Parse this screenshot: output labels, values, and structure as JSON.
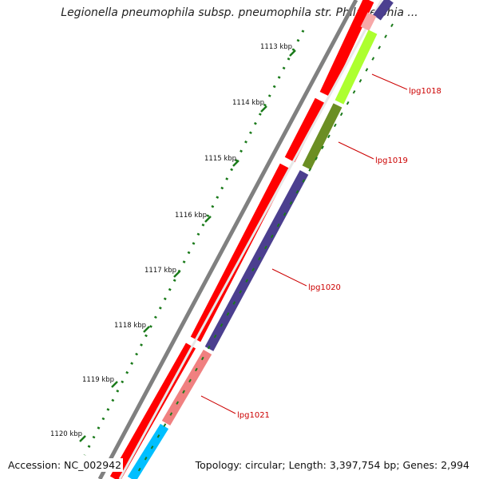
{
  "title": "Legionella pneumophila subsp. pneumophila str. Philadelphia ...",
  "accession": "Accession: NC_002942",
  "topology": "Topology: circular; Length: 3,397,754 bp; Genes: 2,994",
  "ticks": [
    "1113 kbp",
    "1114 kbp",
    "1115 kbp",
    "1116 kbp",
    "1117 kbp",
    "1118 kbp",
    "1119 kbp",
    "1120 kbp"
  ],
  "genes": [
    "lpg1018",
    "lpg1019",
    "lpg1020",
    "lpg1021"
  ],
  "colors": {
    "backbone": "#808080",
    "forward_cds": "#ff0000",
    "reverse_cds": "#4b3f8f",
    "olive_cds": "#6b8e23",
    "lime_cds": "#adff2f",
    "salmon_cds": "#f08080",
    "cyan_cds": "#00bfff",
    "ticks": "#1a7a1a",
    "gene_label": "#cc0000"
  }
}
